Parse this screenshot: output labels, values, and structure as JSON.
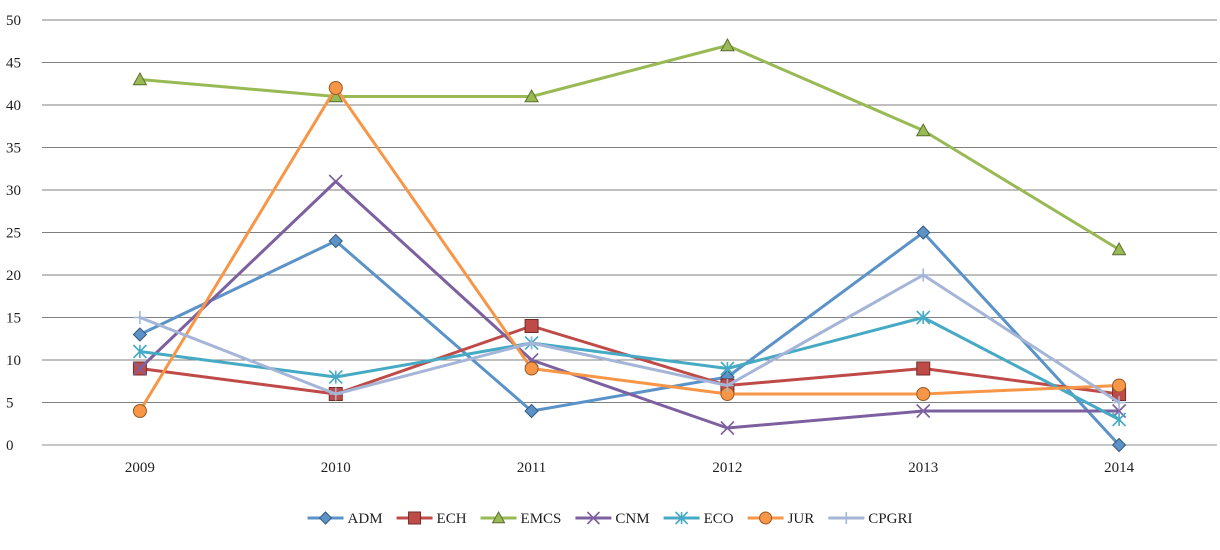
{
  "chart_data": {
    "type": "line",
    "title": "",
    "xlabel": "",
    "ylabel": "",
    "categories": [
      "2009",
      "2010",
      "2011",
      "2012",
      "2013",
      "2014"
    ],
    "ylim": [
      0,
      50
    ],
    "yticks": [
      0,
      5,
      10,
      15,
      20,
      25,
      30,
      35,
      40,
      45,
      50
    ],
    "grid": "horizontal",
    "legend_position": "bottom-center",
    "series": [
      {
        "name": "ADM",
        "color": "#5b93c8",
        "marker": "diamond",
        "values": [
          13,
          24,
          4,
          8,
          25,
          0
        ]
      },
      {
        "name": "ECH",
        "color": "#be4b48",
        "marker": "square",
        "values": [
          9,
          6,
          14,
          7,
          9,
          6
        ]
      },
      {
        "name": "EMCS",
        "color": "#98b954",
        "marker": "triangle",
        "values": [
          43,
          41,
          41,
          47,
          37,
          23
        ]
      },
      {
        "name": "CNM",
        "color": "#7d60a0",
        "marker": "x",
        "values": [
          9,
          31,
          10,
          2,
          4,
          4
        ]
      },
      {
        "name": "ECO",
        "color": "#46aac4",
        "marker": "star",
        "values": [
          11,
          8,
          12,
          9,
          15,
          3
        ]
      },
      {
        "name": "JUR",
        "color": "#f79646",
        "marker": "circle",
        "values": [
          4,
          42,
          9,
          6,
          6,
          7
        ]
      },
      {
        "name": "CPGRI",
        "color": "#a5b5d8",
        "marker": "plus",
        "values": [
          15,
          6,
          12,
          7,
          20,
          5
        ]
      }
    ]
  }
}
